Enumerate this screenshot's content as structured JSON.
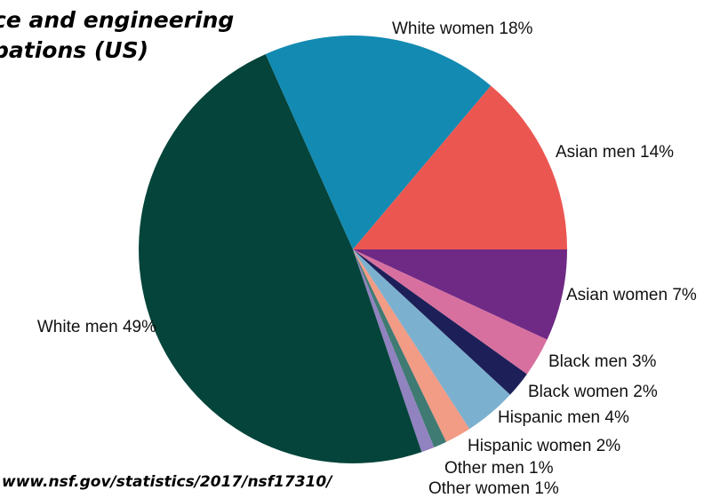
{
  "title_lines": [
    "ce and engineering",
    "pations (US)"
  ],
  "source_text": "www.nsf.gov/statistics/2017/nsf17310/",
  "chart_data": {
    "type": "pie",
    "start_clockwise_from": "3 o'clock",
    "slices": [
      {
        "label": "Asian women 7%",
        "value": 7,
        "color": "#6f2a85"
      },
      {
        "label": "Black men 3%",
        "value": 3,
        "color": "#d8709f"
      },
      {
        "label": "Black women 2%",
        "value": 2,
        "color": "#1d2058"
      },
      {
        "label": "Hispanic men 4%",
        "value": 4,
        "color": "#7cb0cf"
      },
      {
        "label": "Hispanic women 2%",
        "value": 2,
        "color": "#f29b85"
      },
      {
        "label": "Other men 1%",
        "value": 1,
        "color": "#3f7a73"
      },
      {
        "label": "Other women 1%",
        "value": 1,
        "color": "#9182c0"
      },
      {
        "label": "White men 49%",
        "value": 49,
        "color": "#04443a"
      },
      {
        "label": "White women 18%",
        "value": 18,
        "color": "#138ab2"
      },
      {
        "label": "Asian men 14%",
        "value": 14,
        "color": "#ec5650"
      }
    ]
  }
}
